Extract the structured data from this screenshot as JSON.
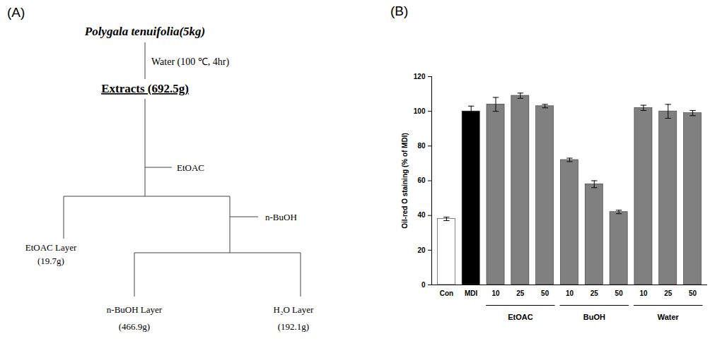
{
  "diagram": {
    "title": "(A)",
    "source": "Polygala tenuifolia(5kg)",
    "extraction": "Water (100 ℃, 4hr)",
    "extract": "Extracts (692.5g)",
    "partitions": [
      {
        "solvent": "EtOAC",
        "layer": "EtOAC Layer",
        "yield": "(19.7g)"
      },
      {
        "solvent": "n-BuOH",
        "layer": "n-BuOH Layer",
        "yield": "(466.9g)"
      }
    ],
    "residue": {
      "layer": "H₂O Layer",
      "yield": "(192.1g)"
    }
  },
  "chart_data": {
    "type": "bar",
    "title": "(B)",
    "categories": [
      "Con",
      "MDI",
      "10",
      "25",
      "50",
      "10",
      "25",
      "50",
      "10",
      "25",
      "50"
    ],
    "groups": [
      null,
      null,
      "EtOAC",
      "EtOAC",
      "EtOAC",
      "BuOH",
      "BuOH",
      "BuOH",
      "Water",
      "Water",
      "Water"
    ],
    "values": [
      38,
      100,
      104,
      109,
      103,
      72,
      58,
      42,
      102,
      100,
      99
    ],
    "errors": [
      1,
      3,
      4,
      1.5,
      1,
      1,
      2,
      1,
      1.5,
      4,
      1.5
    ],
    "colors": [
      "#ffffff",
      "#000000",
      "#808080",
      "#808080",
      "#808080",
      "#808080",
      "#808080",
      "#808080",
      "#808080",
      "#808080",
      "#808080"
    ],
    "ylabel": "Oil-red O staining (% of MDI)",
    "ylim": [
      0,
      120
    ],
    "yticks": [
      0,
      20,
      40,
      60,
      80,
      100,
      120
    ],
    "grid": false
  }
}
